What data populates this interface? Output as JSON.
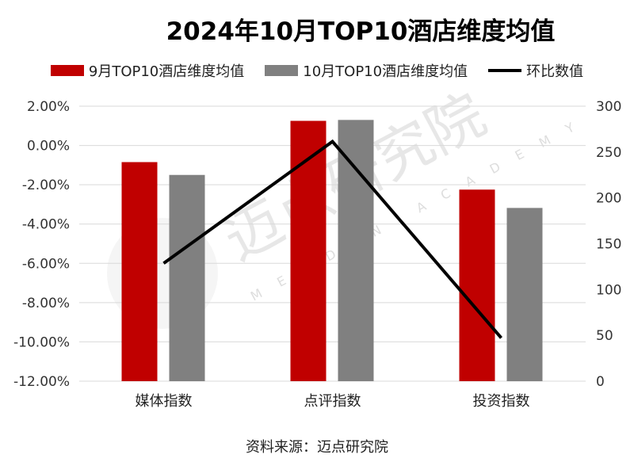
{
  "chart_data": {
    "type": "bar",
    "title": "2024年10月TOP10酒店维度均值",
    "categories": [
      "媒体指数",
      "点评指数",
      "投资指数"
    ],
    "series": [
      {
        "name": "9月TOP10酒店维度均值",
        "type": "bar",
        "axis": "right",
        "color": "#C00000",
        "values": [
          239,
          284,
          209
        ]
      },
      {
        "name": "10月TOP10酒店维度均值",
        "type": "bar",
        "axis": "right",
        "color": "#808080",
        "values": [
          225,
          285,
          189
        ]
      },
      {
        "name": "环比数值",
        "type": "line",
        "axis": "left",
        "color": "#000000",
        "values": [
          -6.0,
          0.2,
          -9.8
        ]
      }
    ],
    "left_axis": {
      "ylim": [
        -12,
        2
      ],
      "ticks": [
        "2.00%",
        "0.00%",
        "-2.00%",
        "-4.00%",
        "-6.00%",
        "-8.00%",
        "-10.00%",
        "-12.00%"
      ]
    },
    "right_axis": {
      "ylim": [
        0,
        300
      ],
      "ticks": [
        "300",
        "250",
        "200",
        "150",
        "100",
        "50",
        "0"
      ]
    },
    "grid": true,
    "legend": "top",
    "source": "资料来源：迈点研究院",
    "watermark": "迈点研究院 MEADIN ACADEMY"
  }
}
